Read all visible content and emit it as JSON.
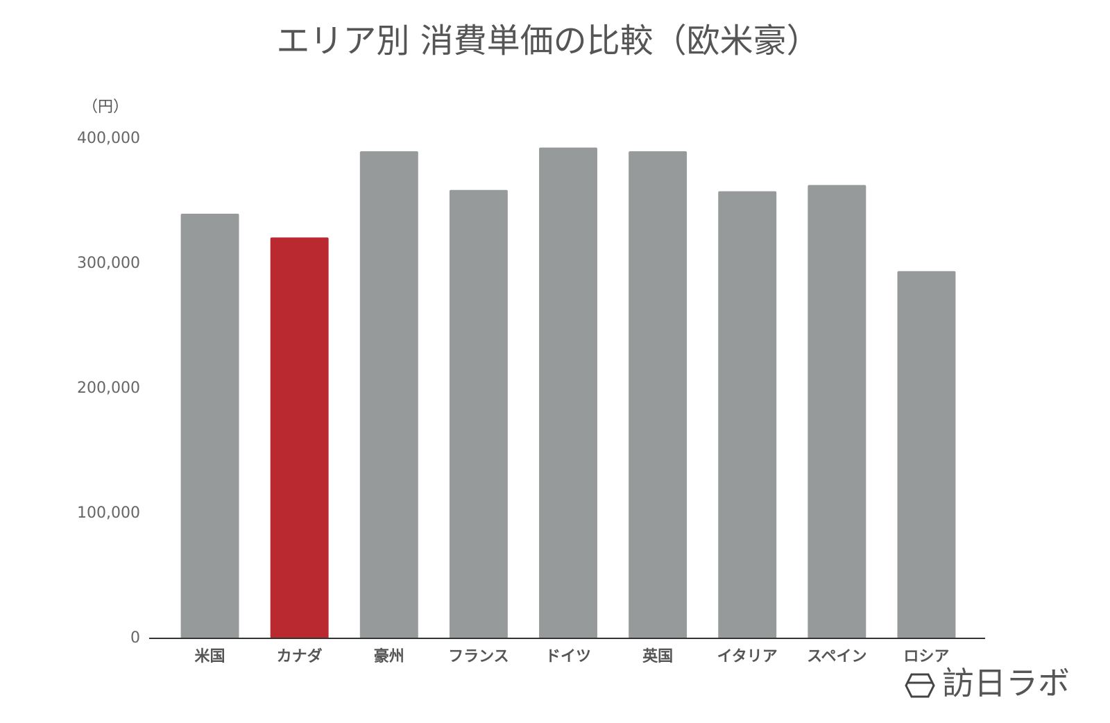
{
  "chart_data": {
    "type": "bar",
    "title": "エリア別 消費単価の比較（欧米豪）",
    "y_label": "（円）",
    "categories": [
      "米国",
      "カナダ",
      "豪州",
      "フランス",
      "ドイツ",
      "英国",
      "イタリア",
      "スペイン",
      "ロシア"
    ],
    "values": [
      340000,
      321000,
      390000,
      359000,
      393000,
      390000,
      358000,
      363000,
      294000
    ],
    "colors": [
      "#979a9a",
      "#b9292f",
      "#979a9a",
      "#979a9a",
      "#979a9a",
      "#979a9a",
      "#979a9a",
      "#979a9a",
      "#979a9a"
    ],
    "ylim": [
      0,
      400000
    ],
    "yticks": [
      0,
      {
        "value": 100000,
        "label": "100,000"
      },
      {
        "value": 200000,
        "label": "200,000"
      },
      {
        "value": 300000,
        "label": "300,000"
      },
      {
        "value": 400000,
        "label": "400,000"
      }
    ],
    "grid": false
  },
  "logo": "訪日ラボ"
}
